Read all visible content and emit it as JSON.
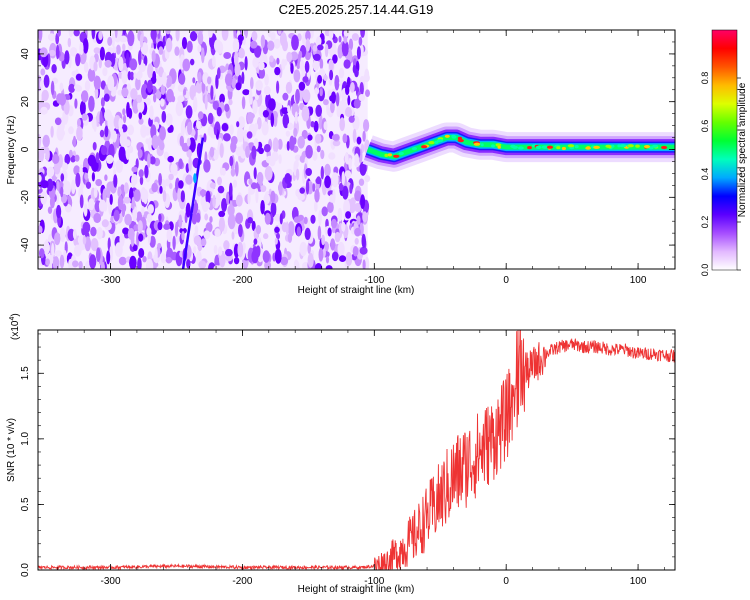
{
  "title": "C2E5.2025.257.14.44.G19",
  "chart_data": [
    {
      "type": "heatmap",
      "xlabel": "Height of straight line (km)",
      "ylabel": "Frequency (Hz)",
      "xlim": [
        -355,
        128
      ],
      "ylim": [
        -50,
        50
      ],
      "xticks": [
        -300,
        -200,
        -100,
        0,
        100
      ],
      "yticks": [
        -40,
        -20,
        0,
        20,
        40
      ],
      "colorbar": {
        "label": "Normalized spectral amplitude",
        "range": [
          0,
          1
        ],
        "ticks": [
          "0.0",
          "0.2",
          "0.4",
          "0.6",
          "0.8"
        ],
        "colors": [
          "#ffffff",
          "#e2b8ff",
          "#a64dff",
          "#5a00ff",
          "#0000ff",
          "#00aaff",
          "#00ffbb",
          "#00ff33",
          "#66ff00",
          "#ddff00",
          "#ffbb00",
          "#ff5500",
          "#ff0000",
          "#ff0066"
        ]
      },
      "noise_region_x": [
        -355,
        -105
      ],
      "signal_trace": {
        "x": [
          -105,
          -95,
          -85,
          -75,
          -65,
          -55,
          -45,
          -38,
          -30,
          -20,
          -10,
          0,
          10,
          30,
          60,
          90,
          128
        ],
        "y": [
          0,
          -2,
          -3,
          -1,
          1,
          3,
          5,
          5,
          3,
          2,
          2,
          1,
          1,
          1,
          1,
          1,
          1
        ]
      },
      "meteor_streak": {
        "x": [
          -245,
          -230
        ],
        "y": [
          -50,
          5
        ]
      }
    },
    {
      "type": "line",
      "xlabel": "Height of straight line (km)",
      "ylabel": "SNR (10 * v/v)",
      "exponent_label": "(x10",
      "exponent_power": "4",
      "exponent_close": ")",
      "xlim": [
        -355,
        128
      ],
      "ylim": [
        0,
        1.83
      ],
      "xticks": [
        -300,
        -200,
        -100,
        0,
        100
      ],
      "yticks": [
        0.0,
        0.5,
        1.0,
        1.5
      ],
      "series": [
        {
          "color": "#ee3333",
          "x": [
            -355,
            -300,
            -250,
            -200,
            -150,
            -110,
            -100,
            -90,
            -80,
            -70,
            -60,
            -50,
            -40,
            -30,
            -20,
            -10,
            0,
            5,
            10,
            15,
            20,
            30,
            40,
            50,
            60,
            70,
            80,
            90,
            100,
            110,
            128
          ],
          "y": [
            0.02,
            0.02,
            0.03,
            0.02,
            0.02,
            0.02,
            0.03,
            0.06,
            0.15,
            0.25,
            0.4,
            0.55,
            0.7,
            0.8,
            0.9,
            1.0,
            1.15,
            1.3,
            1.45,
            1.5,
            1.55,
            1.65,
            1.7,
            1.72,
            1.7,
            1.7,
            1.68,
            1.68,
            1.65,
            1.65,
            1.63
          ]
        }
      ]
    }
  ]
}
